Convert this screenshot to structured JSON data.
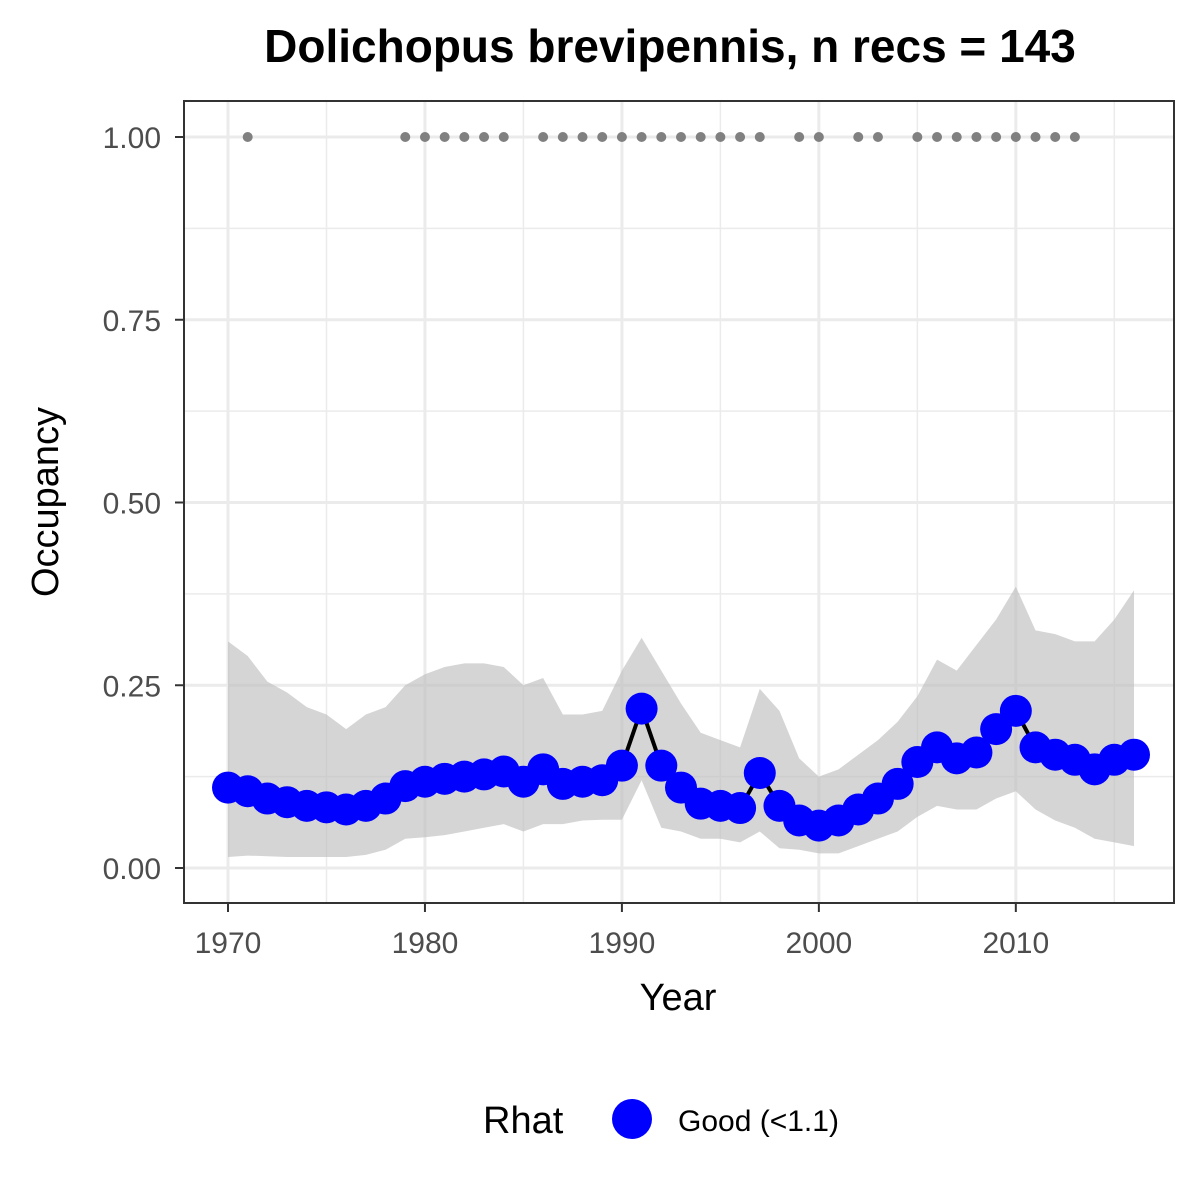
{
  "chart_data": {
    "type": "line",
    "title": "Dolichopus brevipennis, n recs = 143",
    "xlabel": "Year",
    "ylabel": "Occupancy",
    "xlim": [
      1967.8,
      2018.2
    ],
    "ylim": [
      -0.05,
      1.05
    ],
    "x_ticks": [
      1970,
      1980,
      1990,
      2000,
      2010
    ],
    "x_tick_labels": [
      "1970",
      "1980",
      "1990",
      "2000",
      "2010"
    ],
    "y_ticks": [
      0,
      0.25,
      0.5,
      0.75,
      1
    ],
    "y_tick_labels": [
      "0.00",
      "0.25",
      "0.50",
      "0.75",
      "1.00"
    ],
    "grid": true,
    "legend_position": "bottom",
    "legend": {
      "title": "Rhat",
      "entries": [
        {
          "label": "Good (<1.1)",
          "color": "#0000ff"
        }
      ]
    },
    "colors": {
      "points": "#0000ff",
      "line": "#000000",
      "ribbon": "#bfbfbf",
      "records": "#808080",
      "grid": "#ebebeb",
      "panel_border": "#333333"
    },
    "x": [
      1970,
      1971,
      1972,
      1973,
      1974,
      1975,
      1976,
      1977,
      1978,
      1979,
      1980,
      1981,
      1982,
      1983,
      1984,
      1985,
      1986,
      1987,
      1988,
      1989,
      1990,
      1991,
      1992,
      1993,
      1994,
      1995,
      1996,
      1997,
      1998,
      1999,
      2000,
      2001,
      2002,
      2003,
      2004,
      2005,
      2006,
      2007,
      2008,
      2009,
      2010,
      2011,
      2012,
      2013,
      2014,
      2015,
      2016
    ],
    "series": [
      {
        "values": [
          0.11,
          0.105,
          0.095,
          0.09,
          0.085,
          0.083,
          0.08,
          0.085,
          0.095,
          0.112,
          0.118,
          0.122,
          0.125,
          0.128,
          0.132,
          0.118,
          0.135,
          0.115,
          0.118,
          0.12,
          0.14,
          0.218,
          0.14,
          0.11,
          0.088,
          0.085,
          0.082,
          0.13,
          0.085,
          0.065,
          0.058,
          0.065,
          0.08,
          0.095,
          0.115,
          0.145,
          0.165,
          0.15,
          0.158,
          0.19,
          0.215,
          0.165,
          0.155,
          0.148,
          0.135,
          0.148,
          0.155
        ],
        "lower": [
          0.015,
          0.017,
          0.016,
          0.015,
          0.015,
          0.015,
          0.015,
          0.018,
          0.025,
          0.04,
          0.042,
          0.045,
          0.05,
          0.055,
          0.06,
          0.05,
          0.06,
          0.06,
          0.065,
          0.066,
          0.066,
          0.12,
          0.055,
          0.05,
          0.04,
          0.04,
          0.035,
          0.05,
          0.027,
          0.025,
          0.02,
          0.02,
          0.03,
          0.04,
          0.05,
          0.07,
          0.085,
          0.08,
          0.08,
          0.095,
          0.105,
          0.08,
          0.065,
          0.055,
          0.04,
          0.035,
          0.03
        ],
        "upper": [
          0.31,
          0.29,
          0.255,
          0.24,
          0.22,
          0.21,
          0.19,
          0.21,
          0.22,
          0.25,
          0.265,
          0.275,
          0.28,
          0.28,
          0.275,
          0.25,
          0.26,
          0.21,
          0.21,
          0.215,
          0.27,
          0.315,
          0.27,
          0.225,
          0.185,
          0.175,
          0.165,
          0.245,
          0.215,
          0.15,
          0.125,
          0.135,
          0.155,
          0.175,
          0.2,
          0.235,
          0.285,
          0.27,
          0.305,
          0.34,
          0.385,
          0.325,
          0.32,
          0.31,
          0.31,
          0.34,
          0.38
        ]
      }
    ],
    "record_years": [
      1971,
      1979,
      1980,
      1981,
      1982,
      1983,
      1984,
      1986,
      1987,
      1988,
      1989,
      1990,
      1991,
      1992,
      1993,
      1994,
      1995,
      1996,
      1997,
      1999,
      2000,
      2002,
      2003,
      2005,
      2006,
      2007,
      2008,
      2009,
      2010,
      2011,
      2012,
      2013
    ],
    "record_value": 1.0
  }
}
